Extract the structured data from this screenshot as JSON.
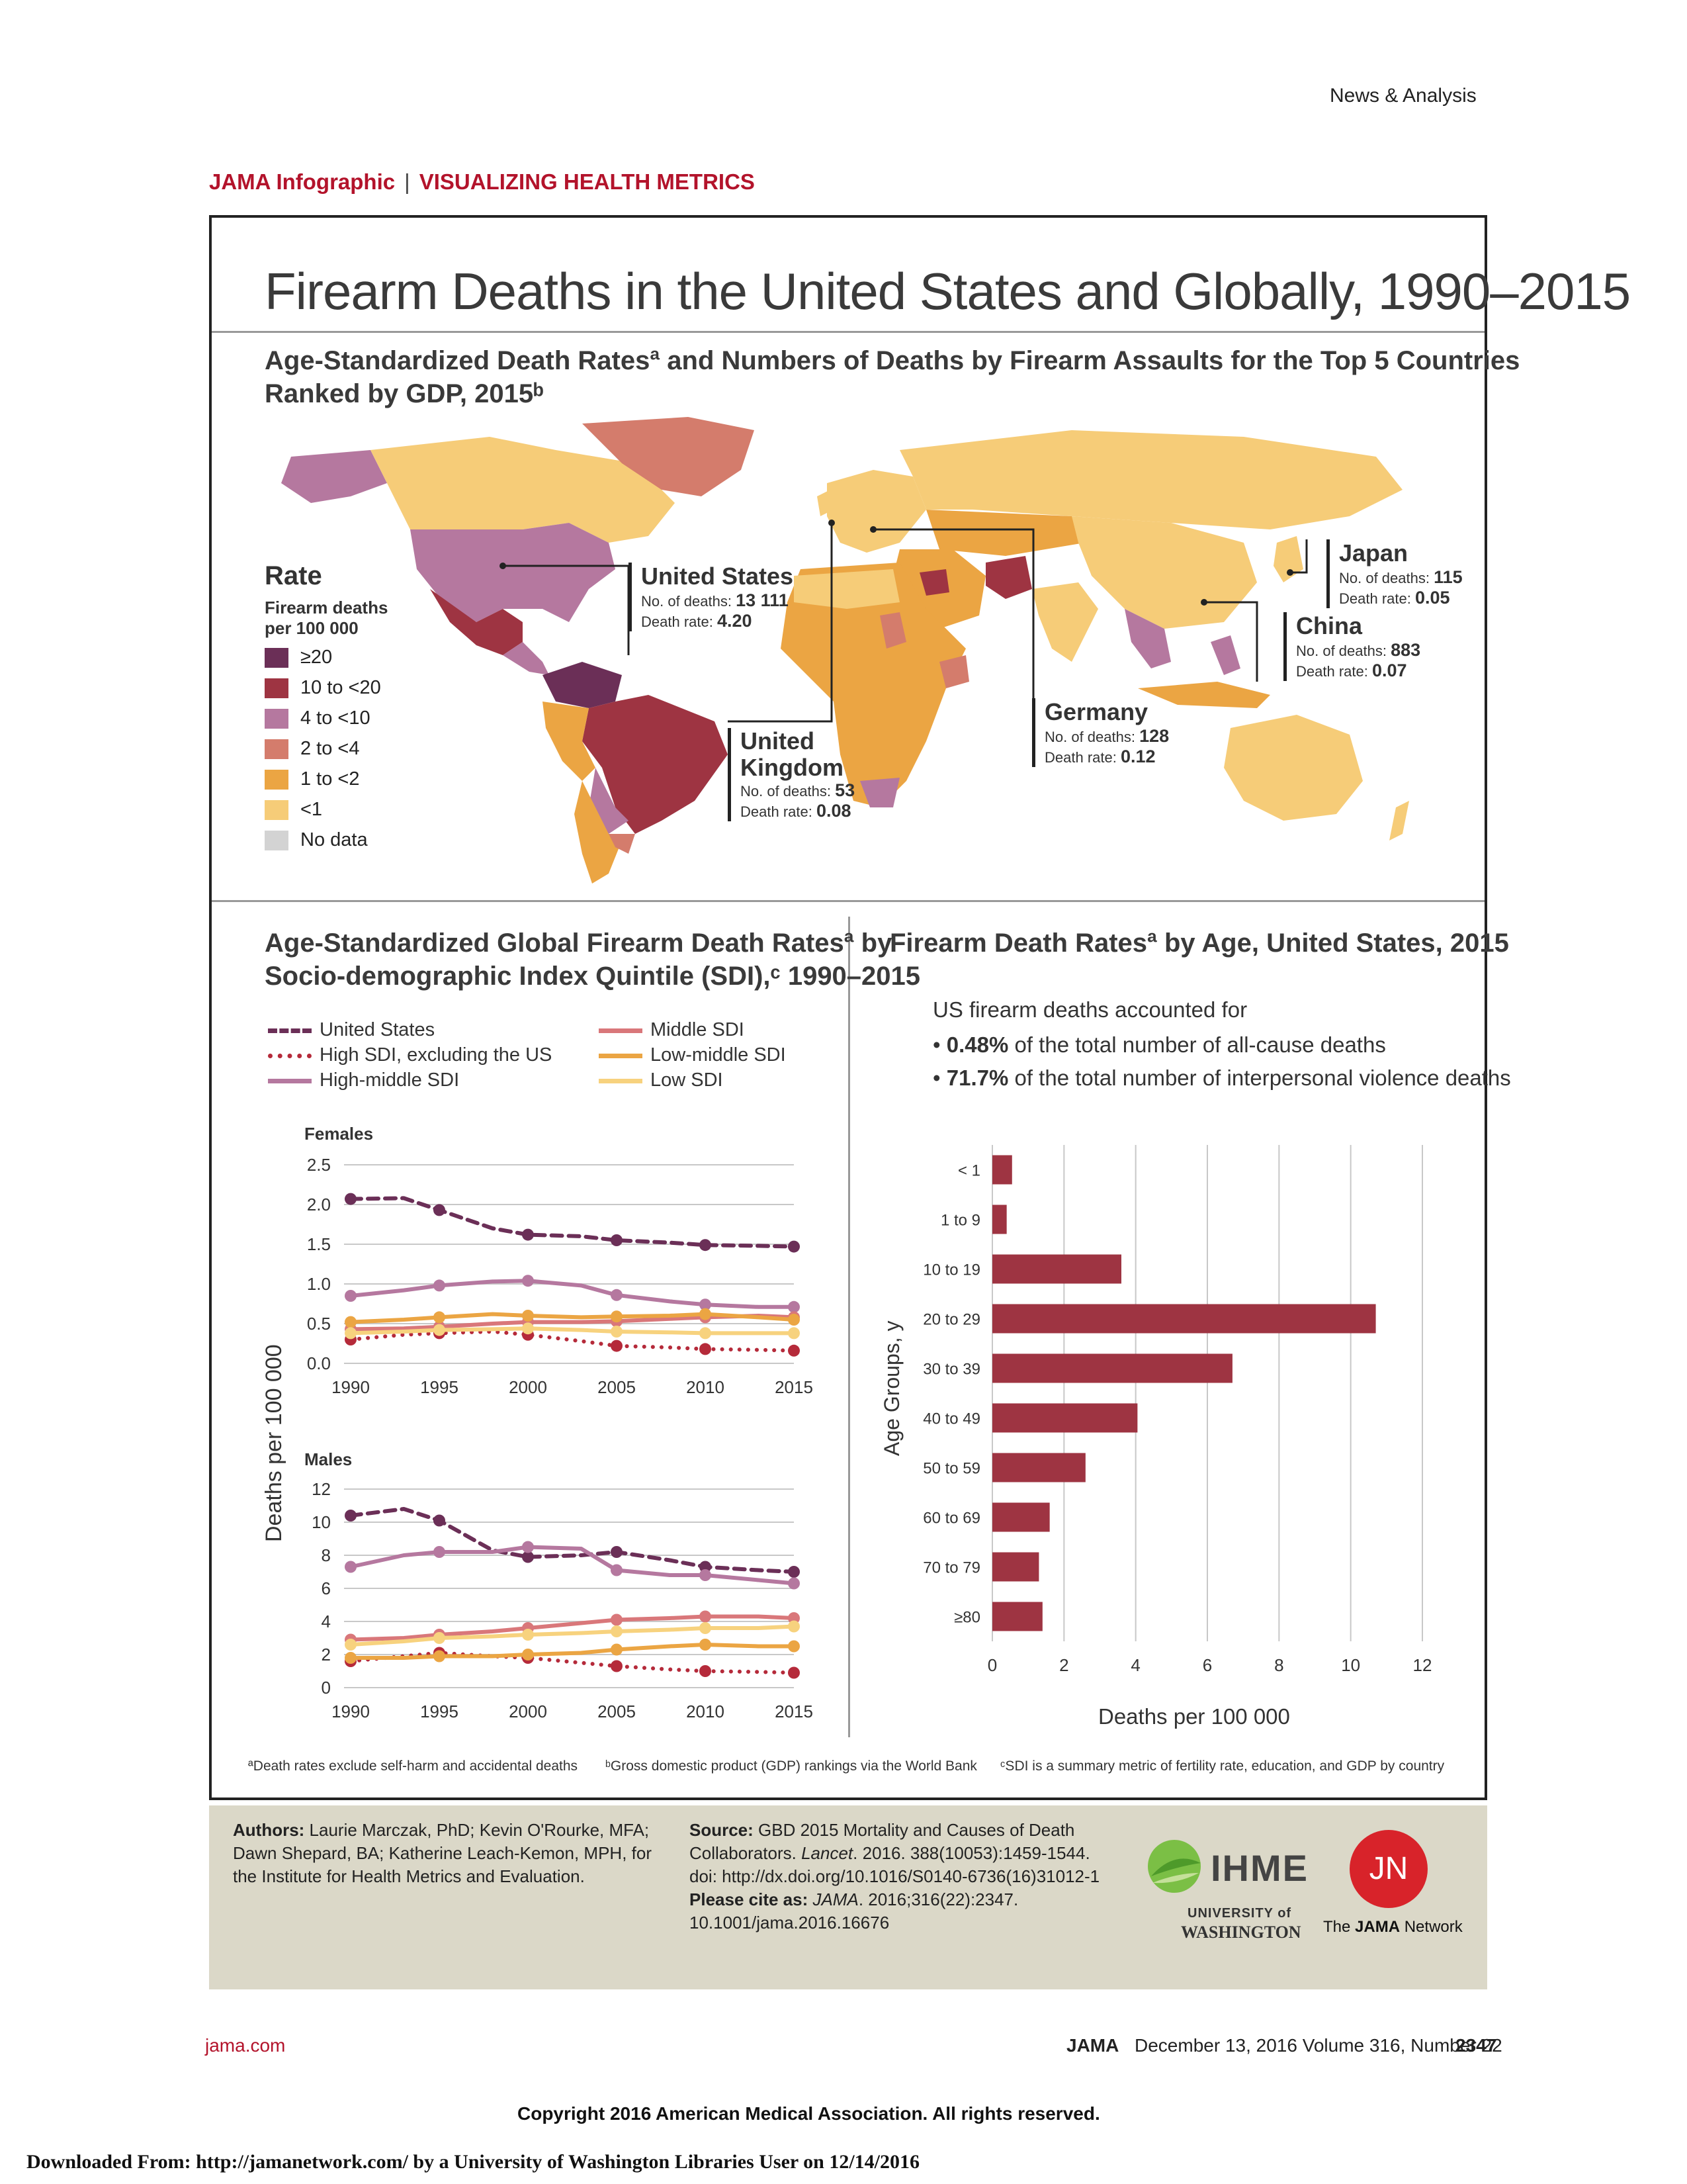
{
  "page": {
    "section": "News & Analysis",
    "header_left": "JAMA Infographic",
    "header_sep": "|",
    "header_right": "VISUALIZING HEALTH METRICS",
    "title": "Firearm Deaths in the United States and Globally, 1990–2015"
  },
  "map": {
    "heading_line1": "Age-Standardized Death Ratesª and Numbers of Deaths by Firearm Assaults for the Top 5 Countries",
    "heading_line2": "Ranked by GDP, 2015ᵇ",
    "legend_title": "Rate",
    "legend_subtitle1": "Firearm deaths",
    "legend_subtitle2": "per 100 000",
    "legend": [
      {
        "label": "≥20",
        "color": "#6b2f57"
      },
      {
        "label": "10 to <20",
        "color": "#9e3442"
      },
      {
        "label": "4 to <10",
        "color": "#b5789f"
      },
      {
        "label": "2 to <4",
        "color": "#d47c6c"
      },
      {
        "label": "1 to <2",
        "color": "#eba543"
      },
      {
        "label": "<1",
        "color": "#f6cc78"
      },
      {
        "label": "No data",
        "color": "#d3d3d3"
      }
    ],
    "deaths_label": "No. of deaths:",
    "rate_label": "Death rate:",
    "callouts": [
      {
        "name": "United States",
        "deaths": "13 111",
        "rate": "4.20"
      },
      {
        "name": "United Kingdom",
        "deaths": "53",
        "rate": "0.08"
      },
      {
        "name": "Germany",
        "deaths": "128",
        "rate": "0.12"
      },
      {
        "name": "Japan",
        "deaths": "115",
        "rate": "0.05"
      },
      {
        "name": "China",
        "deaths": "883",
        "rate": "0.07"
      }
    ]
  },
  "left_panel": {
    "heading_line1": "Age-Standardized Global Firearm Death Ratesª by",
    "heading_line2": "Socio-demographic Index Quintile (SDI),ᶜ 1990–2015",
    "y_axis_label": "Deaths per 100 000"
  },
  "right_panel": {
    "heading": "Firearm Death Ratesª by Age, United States, 2015",
    "intro": "US firearm deaths accounted for",
    "bullet1_value": "0.48%",
    "bullet1_text": " of the total number of all-cause deaths",
    "bullet2_value": "71.7%",
    "bullet2_text": " of the total number of interpersonal violence deaths"
  },
  "chart_data": [
    {
      "type": "line",
      "title": "Females",
      "ylabel": "Deaths per 100 000",
      "x": [
        1990,
        1993,
        1995,
        1998,
        2000,
        2003,
        2005,
        2008,
        2010,
        2013,
        2015
      ],
      "xticks": [
        1990,
        1995,
        2000,
        2005,
        2010,
        2015
      ],
      "yticks": [
        "0.0",
        "0.5",
        "1.0",
        "1.5",
        "2.0",
        "2.5"
      ],
      "ylim": [
        0,
        2.5
      ],
      "grid": true,
      "legend_position": "top",
      "series": [
        {
          "name": "United States",
          "color": "#6b2f57",
          "style": "dashed",
          "values": [
            2.07,
            2.08,
            1.93,
            1.7,
            1.62,
            1.6,
            1.55,
            1.52,
            1.49,
            1.48,
            1.47
          ]
        },
        {
          "name": "High SDI, excluding the US",
          "color": "#b52a3a",
          "style": "dotted",
          "values": [
            0.3,
            0.36,
            0.38,
            0.4,
            0.36,
            0.28,
            0.22,
            0.2,
            0.18,
            0.17,
            0.16
          ]
        },
        {
          "name": "High-middle SDI",
          "color": "#b5789f",
          "style": "solid",
          "values": [
            0.85,
            0.92,
            0.98,
            1.03,
            1.04,
            0.98,
            0.86,
            0.78,
            0.74,
            0.71,
            0.71
          ]
        },
        {
          "name": "Middle SDI",
          "color": "#d9777a",
          "style": "solid",
          "values": [
            0.43,
            0.44,
            0.46,
            0.5,
            0.52,
            0.52,
            0.53,
            0.56,
            0.58,
            0.6,
            0.58
          ]
        },
        {
          "name": "Low-middle SDI",
          "color": "#eba543",
          "style": "solid",
          "values": [
            0.52,
            0.55,
            0.58,
            0.62,
            0.6,
            0.58,
            0.59,
            0.6,
            0.62,
            0.58,
            0.55
          ]
        },
        {
          "name": "Low SDI",
          "color": "#f7d27e",
          "style": "solid",
          "values": [
            0.38,
            0.4,
            0.42,
            0.43,
            0.44,
            0.42,
            0.4,
            0.39,
            0.38,
            0.38,
            0.38
          ]
        }
      ]
    },
    {
      "type": "line",
      "title": "Males",
      "ylabel": "Deaths per 100 000",
      "x": [
        1990,
        1993,
        1995,
        1998,
        2000,
        2003,
        2005,
        2008,
        2010,
        2013,
        2015
      ],
      "xticks": [
        1990,
        1995,
        2000,
        2005,
        2010,
        2015
      ],
      "yticks": [
        "0",
        "2",
        "4",
        "6",
        "8",
        "10",
        "12"
      ],
      "ylim": [
        0,
        12
      ],
      "grid": true,
      "series": [
        {
          "name": "United States",
          "color": "#6b2f57",
          "style": "dashed",
          "values": [
            10.4,
            10.8,
            10.1,
            8.3,
            7.9,
            8.0,
            8.2,
            7.7,
            7.3,
            7.1,
            7.0
          ]
        },
        {
          "name": "High SDI, excluding the US",
          "color": "#b52a3a",
          "style": "dotted",
          "values": [
            1.6,
            1.9,
            2.1,
            1.9,
            1.8,
            1.5,
            1.3,
            1.1,
            1.0,
            0.95,
            0.9
          ]
        },
        {
          "name": "High-middle SDI",
          "color": "#b5789f",
          "style": "solid",
          "values": [
            7.3,
            8.0,
            8.2,
            8.2,
            8.5,
            8.4,
            7.1,
            6.8,
            6.8,
            6.5,
            6.3
          ]
        },
        {
          "name": "Middle SDI",
          "color": "#d9777a",
          "style": "solid",
          "values": [
            2.9,
            3.0,
            3.2,
            3.4,
            3.6,
            3.9,
            4.1,
            4.2,
            4.3,
            4.3,
            4.2
          ]
        },
        {
          "name": "Low-middle SDI",
          "color": "#eba543",
          "style": "solid",
          "values": [
            1.8,
            1.8,
            1.9,
            1.9,
            2.0,
            2.1,
            2.3,
            2.5,
            2.6,
            2.5,
            2.5
          ]
        },
        {
          "name": "Low SDI",
          "color": "#f7d27e",
          "style": "solid",
          "values": [
            2.6,
            2.8,
            3.0,
            3.1,
            3.2,
            3.3,
            3.4,
            3.5,
            3.6,
            3.6,
            3.7
          ]
        }
      ]
    },
    {
      "type": "bar",
      "orientation": "horizontal",
      "title": "Firearm Death Ratesª by Age, United States, 2015",
      "xlabel": "Deaths per 100 000",
      "ylabel": "Age Groups, y",
      "categories": [
        "< 1",
        "1 to 9",
        "10 to 19",
        "20 to 29",
        "30 to 39",
        "40 to 49",
        "50 to 59",
        "60 to 69",
        "70 to 79",
        "≥80"
      ],
      "values": [
        0.55,
        0.4,
        3.6,
        10.7,
        6.7,
        4.05,
        2.6,
        1.6,
        1.3,
        1.4
      ],
      "xlim": [
        0,
        12
      ],
      "xticks": [
        "0",
        "2",
        "4",
        "6",
        "8",
        "10",
        "12"
      ],
      "color": "#9e3442",
      "grid": true
    }
  ],
  "notes": {
    "a": "ªDeath rates exclude self-harm and accidental deaths",
    "b": "ᵇGross domestic product (GDP) rankings via the World Bank",
    "c": "ᶜSDI is a summary metric of fertility rate, education, and GDP by country"
  },
  "footer": {
    "authors_label": "Authors:",
    "authors": " Laurie Marczak, PhD; Kevin O'Rourke, MFA; Dawn Shepard, BA; Katherine Leach-Kemon, MPH, for the Institute for Health Metrics and Evaluation.",
    "source_label": "Source:",
    "source": " GBD 2015 Mortality and Causes of Death Collaborators. ",
    "source_journal": "Lancet",
    "source_rest": ". 2016. 388(10053):1459-1544. doi: http://dx.doi.org/10.1016/S0140-6736(16)31012-1",
    "cite_label": "Please cite as: ",
    "cite_journal": "JAMA",
    "cite_rest": ". 2016;316(22):2347. 10.1001/jama.2016.16676",
    "ihme": "IHME",
    "uw1": "UNIVERSITY of",
    "uw2": "WASHINGTON",
    "jn_logo": "JN",
    "jn_caption_pre": "The ",
    "jn_caption_bold": "JAMA",
    "jn_caption_post": " Network"
  },
  "pagefoot": {
    "site": "jama.com",
    "journal": "JAMA",
    "issue": "December 13, 2016   Volume 316, Number 22",
    "page": "2347",
    "copyright": "Copyright 2016 American Medical Association. All rights reserved.",
    "download": "Downloaded From: http://jamanetwork.com/ by a University of Washington Libraries User  on 12/14/2016"
  }
}
